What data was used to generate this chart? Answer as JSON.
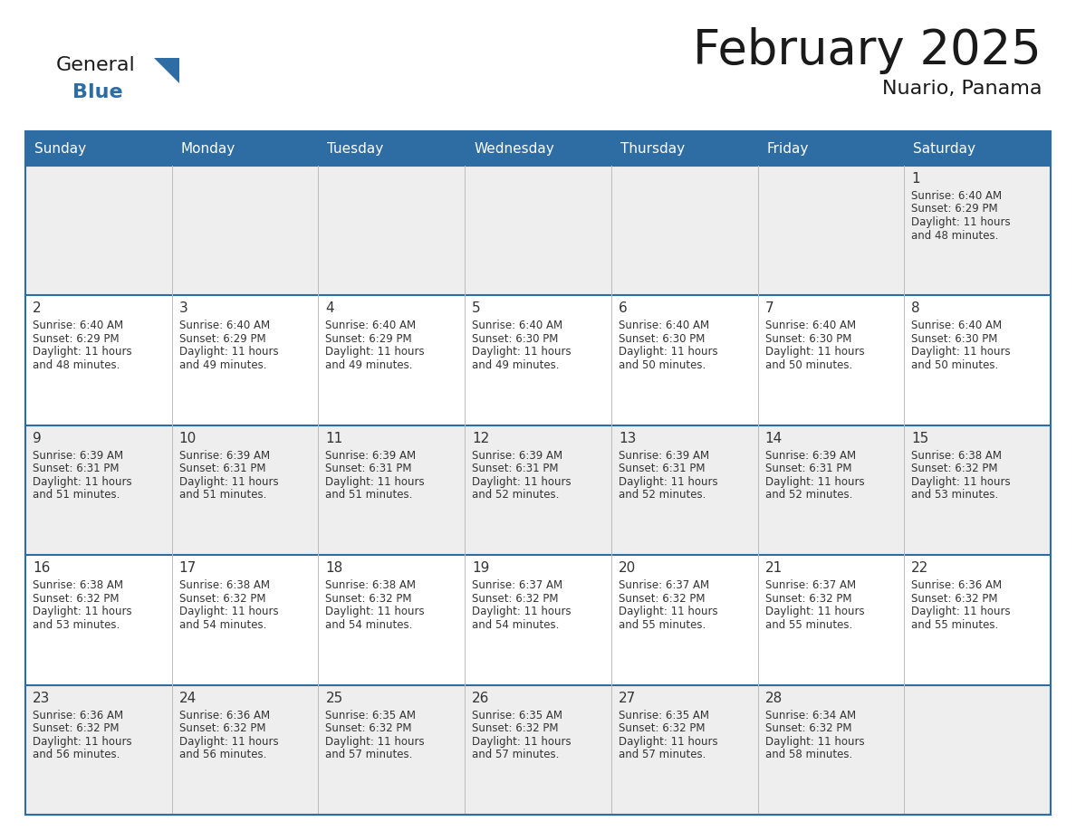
{
  "title": "February 2025",
  "subtitle": "Nuario, Panama",
  "header_bg": "#2E6DA4",
  "header_text_color": "#FFFFFF",
  "cell_bg_light": "#EEEEEE",
  "cell_bg_white": "#FFFFFF",
  "border_color": "#2E6DA4",
  "text_color": "#333333",
  "day_num_color": "#333333",
  "days_of_week": [
    "Sunday",
    "Monday",
    "Tuesday",
    "Wednesday",
    "Thursday",
    "Friday",
    "Saturday"
  ],
  "calendar": [
    [
      null,
      null,
      null,
      null,
      null,
      null,
      1
    ],
    [
      2,
      3,
      4,
      5,
      6,
      7,
      8
    ],
    [
      9,
      10,
      11,
      12,
      13,
      14,
      15
    ],
    [
      16,
      17,
      18,
      19,
      20,
      21,
      22
    ],
    [
      23,
      24,
      25,
      26,
      27,
      28,
      null
    ]
  ],
  "cell_data": {
    "1": {
      "sunrise": "6:40 AM",
      "sunset": "6:29 PM",
      "daylight_hours": 11,
      "daylight_minutes": 48
    },
    "2": {
      "sunrise": "6:40 AM",
      "sunset": "6:29 PM",
      "daylight_hours": 11,
      "daylight_minutes": 48
    },
    "3": {
      "sunrise": "6:40 AM",
      "sunset": "6:29 PM",
      "daylight_hours": 11,
      "daylight_minutes": 49
    },
    "4": {
      "sunrise": "6:40 AM",
      "sunset": "6:29 PM",
      "daylight_hours": 11,
      "daylight_minutes": 49
    },
    "5": {
      "sunrise": "6:40 AM",
      "sunset": "6:30 PM",
      "daylight_hours": 11,
      "daylight_minutes": 49
    },
    "6": {
      "sunrise": "6:40 AM",
      "sunset": "6:30 PM",
      "daylight_hours": 11,
      "daylight_minutes": 50
    },
    "7": {
      "sunrise": "6:40 AM",
      "sunset": "6:30 PM",
      "daylight_hours": 11,
      "daylight_minutes": 50
    },
    "8": {
      "sunrise": "6:40 AM",
      "sunset": "6:30 PM",
      "daylight_hours": 11,
      "daylight_minutes": 50
    },
    "9": {
      "sunrise": "6:39 AM",
      "sunset": "6:31 PM",
      "daylight_hours": 11,
      "daylight_minutes": 51
    },
    "10": {
      "sunrise": "6:39 AM",
      "sunset": "6:31 PM",
      "daylight_hours": 11,
      "daylight_minutes": 51
    },
    "11": {
      "sunrise": "6:39 AM",
      "sunset": "6:31 PM",
      "daylight_hours": 11,
      "daylight_minutes": 51
    },
    "12": {
      "sunrise": "6:39 AM",
      "sunset": "6:31 PM",
      "daylight_hours": 11,
      "daylight_minutes": 52
    },
    "13": {
      "sunrise": "6:39 AM",
      "sunset": "6:31 PM",
      "daylight_hours": 11,
      "daylight_minutes": 52
    },
    "14": {
      "sunrise": "6:39 AM",
      "sunset": "6:31 PM",
      "daylight_hours": 11,
      "daylight_minutes": 52
    },
    "15": {
      "sunrise": "6:38 AM",
      "sunset": "6:32 PM",
      "daylight_hours": 11,
      "daylight_minutes": 53
    },
    "16": {
      "sunrise": "6:38 AM",
      "sunset": "6:32 PM",
      "daylight_hours": 11,
      "daylight_minutes": 53
    },
    "17": {
      "sunrise": "6:38 AM",
      "sunset": "6:32 PM",
      "daylight_hours": 11,
      "daylight_minutes": 54
    },
    "18": {
      "sunrise": "6:38 AM",
      "sunset": "6:32 PM",
      "daylight_hours": 11,
      "daylight_minutes": 54
    },
    "19": {
      "sunrise": "6:37 AM",
      "sunset": "6:32 PM",
      "daylight_hours": 11,
      "daylight_minutes": 54
    },
    "20": {
      "sunrise": "6:37 AM",
      "sunset": "6:32 PM",
      "daylight_hours": 11,
      "daylight_minutes": 55
    },
    "21": {
      "sunrise": "6:37 AM",
      "sunset": "6:32 PM",
      "daylight_hours": 11,
      "daylight_minutes": 55
    },
    "22": {
      "sunrise": "6:36 AM",
      "sunset": "6:32 PM",
      "daylight_hours": 11,
      "daylight_minutes": 55
    },
    "23": {
      "sunrise": "6:36 AM",
      "sunset": "6:32 PM",
      "daylight_hours": 11,
      "daylight_minutes": 56
    },
    "24": {
      "sunrise": "6:36 AM",
      "sunset": "6:32 PM",
      "daylight_hours": 11,
      "daylight_minutes": 56
    },
    "25": {
      "sunrise": "6:35 AM",
      "sunset": "6:32 PM",
      "daylight_hours": 11,
      "daylight_minutes": 57
    },
    "26": {
      "sunrise": "6:35 AM",
      "sunset": "6:32 PM",
      "daylight_hours": 11,
      "daylight_minutes": 57
    },
    "27": {
      "sunrise": "6:35 AM",
      "sunset": "6:32 PM",
      "daylight_hours": 11,
      "daylight_minutes": 57
    },
    "28": {
      "sunrise": "6:34 AM",
      "sunset": "6:32 PM",
      "daylight_hours": 11,
      "daylight_minutes": 58
    }
  }
}
